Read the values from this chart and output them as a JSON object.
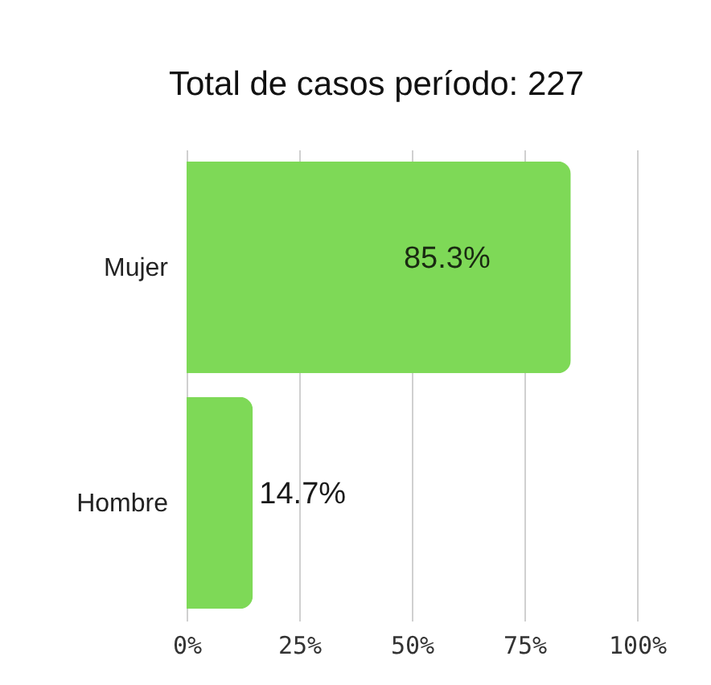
{
  "chart_data": {
    "type": "bar",
    "title": "Total de casos período: 227",
    "orientation": "horizontal",
    "categories": [
      "Mujer",
      "Hombre"
    ],
    "values": [
      85.3,
      14.7
    ],
    "color": "#7ed957",
    "value_labels": [
      "85.3%",
      "14.7%"
    ],
    "xlim": [
      0,
      100
    ],
    "xticks": [
      {
        "value": 0,
        "label": "0%"
      },
      {
        "value": 25,
        "label": "25%"
      },
      {
        "value": 50,
        "label": "50%"
      },
      {
        "value": 75,
        "label": "75%"
      },
      {
        "value": 100,
        "label": "100%"
      }
    ],
    "grid": "x"
  }
}
